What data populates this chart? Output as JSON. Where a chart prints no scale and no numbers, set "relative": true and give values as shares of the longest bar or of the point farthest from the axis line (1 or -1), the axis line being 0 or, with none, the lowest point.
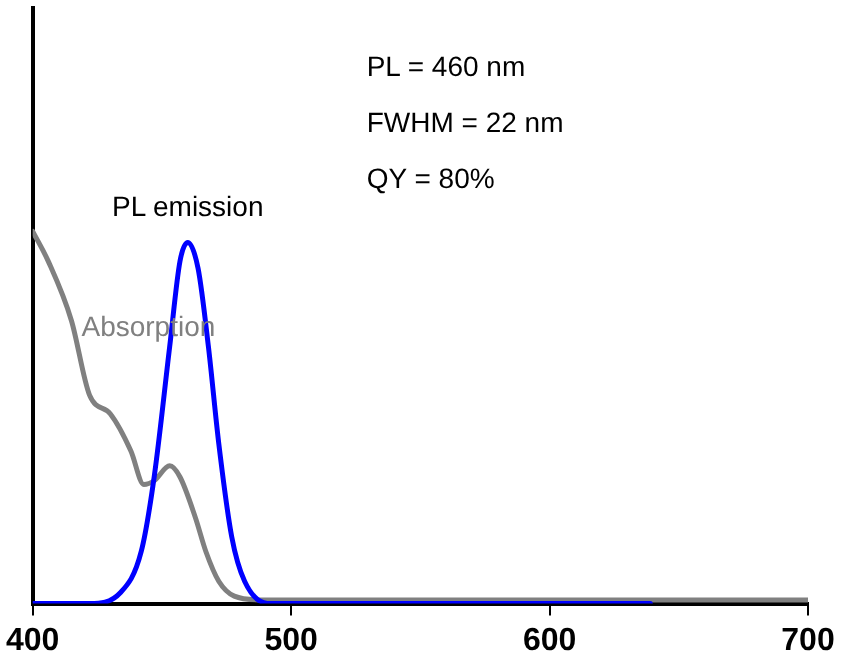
{
  "chart_data": {
    "type": "line",
    "relative": true,
    "xlim": [
      400,
      700
    ],
    "xticks": [
      400,
      500,
      600,
      700
    ],
    "grid": false,
    "legend": false,
    "marker": "none",
    "line_style": "solid",
    "annotations": [
      "PL = 460 nm",
      "FWHM = 22 nm",
      "QY = 80%"
    ],
    "series": [
      {
        "name": "PL emission",
        "color": "#0000ff",
        "x": [
          400,
          422,
          434,
          442,
          447,
          453,
          457,
          460,
          464,
          468,
          472,
          477,
          482,
          492,
          639
        ],
        "values": [
          0,
          0,
          0.03,
          0.14,
          0.34,
          0.69,
          0.92,
          0.97,
          0.9,
          0.69,
          0.43,
          0.18,
          0.06,
          0,
          0
        ]
      },
      {
        "name": "Absorption",
        "color": "#808080",
        "x": [
          400,
          406,
          415,
          422,
          430,
          438,
          443,
          447,
          453,
          457,
          463,
          467,
          472,
          478,
          488,
          700
        ],
        "values": [
          1,
          0.92,
          0.76,
          0.56,
          0.51,
          0.41,
          0.32,
          0.33,
          0.37,
          0.34,
          0.23,
          0.14,
          0.06,
          0.02,
          0.01,
          0.01
        ]
      }
    ]
  }
}
